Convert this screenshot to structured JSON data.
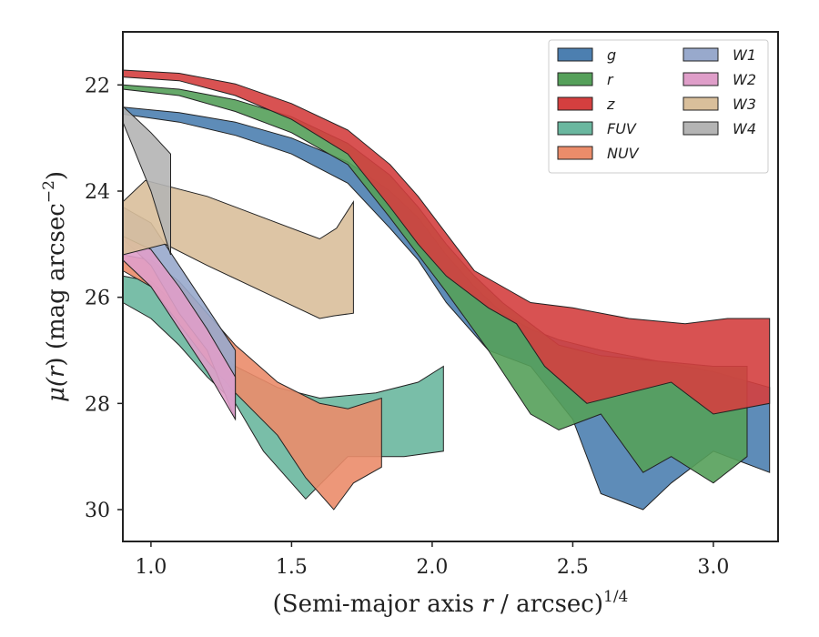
{
  "chart_data": {
    "type": "area",
    "xlabel_main": "(Semi-major axis ",
    "xlabel_var": "r",
    "xlabel_unit": " / arcsec)",
    "xlabel_sup": "1/4",
    "ylabel_mu": "μ(",
    "ylabel_var": "r",
    "ylabel_rest": ") (mag arcsec",
    "ylabel_sup": "−2",
    "ylabel_close": ")",
    "xlim": [
      0.9,
      3.23
    ],
    "ylim": [
      30.6,
      21.0
    ],
    "y_inverted": true,
    "xticks": [
      1.0,
      1.5,
      2.0,
      2.5,
      3.0
    ],
    "xtick_labels": [
      "1.0",
      "1.5",
      "2.0",
      "2.5",
      "3.0"
    ],
    "yticks": [
      22,
      24,
      26,
      28,
      30
    ],
    "ytick_labels": [
      "22",
      "24",
      "26",
      "28",
      "30"
    ],
    "grid": false,
    "legend_position": "top-right",
    "legend_columns": 2,
    "series": [
      {
        "name": "g",
        "color": "#4c7fb0",
        "upper": [
          [
            0.9,
            22.42
          ],
          [
            1.1,
            22.52
          ],
          [
            1.3,
            22.7
          ],
          [
            1.5,
            23.0
          ],
          [
            1.7,
            23.45
          ],
          [
            1.85,
            24.0
          ],
          [
            1.95,
            24.5
          ],
          [
            2.05,
            25.2
          ],
          [
            2.15,
            25.8
          ],
          [
            2.25,
            26.3
          ],
          [
            2.35,
            26.6
          ],
          [
            2.45,
            26.8
          ],
          [
            2.6,
            27.0
          ],
          [
            2.8,
            27.2
          ],
          [
            3.0,
            27.4
          ],
          [
            3.2,
            27.7
          ]
        ],
        "lower": [
          [
            3.2,
            29.3
          ],
          [
            3.0,
            28.9
          ],
          [
            2.85,
            29.5
          ],
          [
            2.75,
            30.0
          ],
          [
            2.6,
            29.7
          ],
          [
            2.5,
            28.3
          ],
          [
            2.35,
            27.3
          ],
          [
            2.2,
            27.0
          ],
          [
            2.05,
            26.1
          ],
          [
            1.95,
            25.3
          ],
          [
            1.85,
            24.7
          ],
          [
            1.7,
            23.85
          ],
          [
            1.5,
            23.3
          ],
          [
            1.3,
            22.95
          ],
          [
            1.1,
            22.7
          ],
          [
            0.9,
            22.55
          ]
        ]
      },
      {
        "name": "r",
        "color": "#55a05a",
        "upper": [
          [
            0.9,
            22.0
          ],
          [
            1.1,
            22.08
          ],
          [
            1.3,
            22.28
          ],
          [
            1.5,
            22.6
          ],
          [
            1.7,
            23.1
          ],
          [
            1.85,
            23.7
          ],
          [
            1.95,
            24.3
          ],
          [
            2.05,
            25.0
          ],
          [
            2.15,
            25.6
          ],
          [
            2.25,
            26.1
          ],
          [
            2.35,
            26.5
          ],
          [
            2.45,
            26.9
          ],
          [
            2.6,
            27.1
          ],
          [
            2.8,
            27.2
          ],
          [
            3.0,
            27.3
          ],
          [
            3.12,
            27.3
          ]
        ],
        "lower": [
          [
            3.12,
            29.0
          ],
          [
            3.0,
            29.5
          ],
          [
            2.85,
            29.0
          ],
          [
            2.75,
            29.3
          ],
          [
            2.6,
            28.2
          ],
          [
            2.45,
            28.5
          ],
          [
            2.35,
            28.2
          ],
          [
            2.2,
            27.0
          ],
          [
            2.05,
            25.9
          ],
          [
            1.95,
            25.2
          ],
          [
            1.85,
            24.5
          ],
          [
            1.7,
            23.5
          ],
          [
            1.5,
            22.9
          ],
          [
            1.3,
            22.5
          ],
          [
            1.1,
            22.2
          ],
          [
            0.9,
            22.08
          ]
        ]
      },
      {
        "name": "z",
        "color": "#d43f3f",
        "upper": [
          [
            0.9,
            21.72
          ],
          [
            1.1,
            21.78
          ],
          [
            1.3,
            21.98
          ],
          [
            1.5,
            22.35
          ],
          [
            1.7,
            22.85
          ],
          [
            1.85,
            23.5
          ],
          [
            1.95,
            24.1
          ],
          [
            2.05,
            24.8
          ],
          [
            2.15,
            25.5
          ],
          [
            2.25,
            25.8
          ],
          [
            2.35,
            26.1
          ],
          [
            2.5,
            26.2
          ],
          [
            2.7,
            26.4
          ],
          [
            2.9,
            26.5
          ],
          [
            3.05,
            26.4
          ],
          [
            3.2,
            26.4
          ]
        ],
        "lower": [
          [
            3.2,
            28.0
          ],
          [
            3.0,
            28.2
          ],
          [
            2.85,
            27.6
          ],
          [
            2.7,
            27.8
          ],
          [
            2.55,
            28.0
          ],
          [
            2.4,
            27.3
          ],
          [
            2.3,
            26.5
          ],
          [
            2.2,
            26.2
          ],
          [
            2.05,
            25.6
          ],
          [
            1.95,
            25.0
          ],
          [
            1.85,
            24.3
          ],
          [
            1.7,
            23.3
          ],
          [
            1.5,
            22.65
          ],
          [
            1.3,
            22.2
          ],
          [
            1.1,
            21.92
          ],
          [
            0.9,
            21.85
          ]
        ]
      },
      {
        "name": "FUV",
        "color": "#6ab79f",
        "upper": [
          [
            0.9,
            25.6
          ],
          [
            1.0,
            25.7
          ],
          [
            1.1,
            26.2
          ],
          [
            1.2,
            26.8
          ],
          [
            1.3,
            27.3
          ],
          [
            1.45,
            27.7
          ],
          [
            1.6,
            27.9
          ],
          [
            1.8,
            27.8
          ],
          [
            1.95,
            27.6
          ],
          [
            2.04,
            27.3
          ]
        ],
        "lower": [
          [
            2.04,
            28.9
          ],
          [
            1.9,
            29.0
          ],
          [
            1.7,
            29.0
          ],
          [
            1.55,
            29.8
          ],
          [
            1.4,
            28.9
          ],
          [
            1.3,
            28.0
          ],
          [
            1.2,
            27.5
          ],
          [
            1.1,
            26.9
          ],
          [
            1.0,
            26.4
          ],
          [
            0.9,
            26.1
          ]
        ]
      },
      {
        "name": "NUV",
        "color": "#eb8c6a",
        "upper": [
          [
            0.9,
            25.2
          ],
          [
            1.0,
            25.3
          ],
          [
            1.1,
            25.7
          ],
          [
            1.2,
            26.3
          ],
          [
            1.3,
            26.9
          ],
          [
            1.45,
            27.6
          ],
          [
            1.6,
            28.0
          ],
          [
            1.7,
            28.1
          ],
          [
            1.82,
            27.9
          ]
        ],
        "lower": [
          [
            1.82,
            29.2
          ],
          [
            1.72,
            29.5
          ],
          [
            1.65,
            30.0
          ],
          [
            1.55,
            29.4
          ],
          [
            1.45,
            28.6
          ],
          [
            1.3,
            27.8
          ],
          [
            1.2,
            27.2
          ],
          [
            1.1,
            26.5
          ],
          [
            1.0,
            25.8
          ],
          [
            0.9,
            25.5
          ]
        ]
      },
      {
        "name": "W1",
        "color": "#98a9cc",
        "upper": [
          [
            0.9,
            24.3
          ],
          [
            1.0,
            24.6
          ],
          [
            1.1,
            25.4
          ],
          [
            1.2,
            26.2
          ],
          [
            1.3,
            27.0
          ]
        ],
        "lower": [
          [
            1.3,
            28.3
          ],
          [
            1.2,
            27.0
          ],
          [
            1.1,
            26.3
          ],
          [
            1.0,
            25.4
          ],
          [
            0.9,
            24.9
          ]
        ]
      },
      {
        "name": "W2",
        "color": "#df9ec9",
        "upper": [
          [
            0.9,
            24.85
          ],
          [
            1.0,
            25.1
          ],
          [
            1.1,
            25.8
          ],
          [
            1.2,
            26.6
          ],
          [
            1.3,
            27.5
          ]
        ],
        "lower": [
          [
            1.3,
            28.3
          ],
          [
            1.2,
            27.4
          ],
          [
            1.1,
            26.6
          ],
          [
            1.0,
            25.8
          ],
          [
            0.9,
            25.3
          ]
        ]
      },
      {
        "name": "W3",
        "color": "#d9bf9b",
        "upper": [
          [
            0.9,
            24.2
          ],
          [
            0.98,
            23.8
          ],
          [
            1.2,
            24.1
          ],
          [
            1.4,
            24.5
          ],
          [
            1.6,
            24.9
          ],
          [
            1.66,
            24.7
          ],
          [
            1.72,
            24.2
          ]
        ],
        "lower": [
          [
            1.72,
            26.3
          ],
          [
            1.65,
            26.35
          ],
          [
            1.6,
            26.4
          ],
          [
            1.4,
            25.9
          ],
          [
            1.2,
            25.4
          ],
          [
            1.05,
            25.0
          ],
          [
            0.9,
            25.2
          ]
        ]
      },
      {
        "name": "W4",
        "color": "#b4b4b4",
        "upper": [
          [
            0.9,
            22.4
          ],
          [
            1.0,
            22.9
          ],
          [
            1.07,
            23.3
          ]
        ],
        "lower": [
          [
            1.07,
            25.2
          ],
          [
            1.0,
            24.0
          ],
          [
            0.9,
            22.7
          ]
        ]
      }
    ]
  }
}
